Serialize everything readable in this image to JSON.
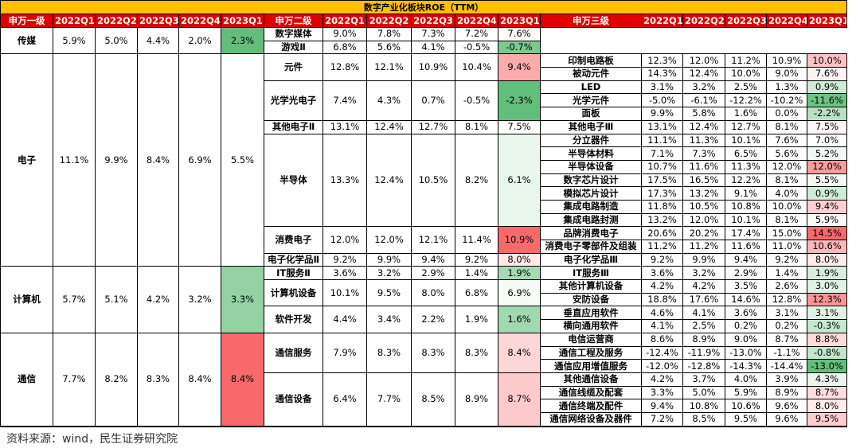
{
  "title": "数字产业化板块ROE（TTM）",
  "header": [
    "申万一级",
    "2022Q1",
    "2022Q2",
    "2022Q3",
    "2022Q4",
    "2023Q1",
    "申万二级",
    "2022Q1",
    "2022Q2",
    "2022Q3",
    "2022Q4",
    "2023Q1",
    "申万三级",
    "2022Q1",
    "2022Q2",
    "2022Q3",
    "2022Q4",
    "2023Q1"
  ],
  "color_scale": {
    "low": "#63be7b",
    "mid": "#ffffff",
    "high": "#f8696b"
  },
  "sectors": [
    {
      "name": "传媒",
      "values": [
        "5.9%",
        "5.0%",
        "4.4%",
        "2.0%",
        "2.3%"
      ],
      "subs": [
        {
          "name": "数字媒体",
          "values": [
            "9.0%",
            "7.8%",
            "7.3%",
            "7.2%",
            "7.6%"
          ],
          "subs": []
        },
        {
          "name": "游戏Ⅱ",
          "values": [
            "6.8%",
            "5.6%",
            "4.1%",
            "-0.5%",
            "-0.7%"
          ],
          "subs": []
        }
      ]
    },
    {
      "name": "电子",
      "values": [
        "11.1%",
        "9.9%",
        "8.4%",
        "6.9%",
        "5.5%"
      ],
      "subs": [
        {
          "name": "元件",
          "values": [
            "12.8%",
            "12.1%",
            "10.9%",
            "10.4%",
            "9.4%"
          ],
          "subs": [
            {
              "name": "印制电路板",
              "values": [
                "12.3%",
                "12.0%",
                "11.2%",
                "10.9%",
                "10.0%"
              ]
            },
            {
              "name": "被动元件",
              "values": [
                "14.3%",
                "12.4%",
                "10.0%",
                "9.0%",
                "7.6%"
              ]
            }
          ]
        },
        {
          "name": "光学光电子",
          "values": [
            "7.4%",
            "4.3%",
            "0.7%",
            "-0.5%",
            "-2.3%"
          ],
          "subs": [
            {
              "name": "LED",
              "values": [
                "3.1%",
                "3.2%",
                "2.5%",
                "1.3%",
                "0.9%"
              ]
            },
            {
              "name": "光学元件",
              "values": [
                "-5.0%",
                "-6.1%",
                "-12.2%",
                "-10.2%",
                "-11.6%"
              ]
            },
            {
              "name": "面板",
              "values": [
                "9.9%",
                "5.8%",
                "1.6%",
                "0.0%",
                "-2.2%"
              ]
            }
          ]
        },
        {
          "name": "其他电子Ⅱ",
          "values": [
            "13.1%",
            "12.4%",
            "12.7%",
            "8.1%",
            "7.5%"
          ],
          "subs": [
            {
              "name": "其他电子Ⅲ",
              "values": [
                "13.1%",
                "12.4%",
                "12.7%",
                "8.1%",
                "7.5%"
              ]
            }
          ]
        },
        {
          "name": "半导体",
          "values": [
            "13.3%",
            "12.4%",
            "10.5%",
            "8.2%",
            "6.1%"
          ],
          "subs": [
            {
              "name": "分立器件",
              "values": [
                "11.1%",
                "11.3%",
                "10.1%",
                "7.6%",
                "7.0%"
              ]
            },
            {
              "name": "半导体材料",
              "values": [
                "7.1%",
                "7.3%",
                "6.5%",
                "5.6%",
                "5.2%"
              ]
            },
            {
              "name": "半导体设备",
              "values": [
                "10.7%",
                "11.6%",
                "11.3%",
                "12.0%",
                "12.0%"
              ]
            },
            {
              "name": "数字芯片设计",
              "values": [
                "17.5%",
                "16.5%",
                "12.2%",
                "8.1%",
                "5.5%"
              ]
            },
            {
              "name": "模拟芯片设计",
              "values": [
                "17.3%",
                "13.2%",
                "9.1%",
                "4.0%",
                "0.9%"
              ]
            },
            {
              "name": "集成电路制造",
              "values": [
                "11.8%",
                "10.5%",
                "10.8%",
                "10.0%",
                "9.4%"
              ]
            },
            {
              "name": "集成电路封测",
              "values": [
                "13.2%",
                "12.0%",
                "10.1%",
                "8.1%",
                "5.9%"
              ]
            }
          ]
        },
        {
          "name": "消费电子",
          "values": [
            "12.0%",
            "12.0%",
            "12.1%",
            "11.4%",
            "10.9%"
          ],
          "subs": [
            {
              "name": "品牌消费电子",
              "values": [
                "20.6%",
                "20.2%",
                "17.4%",
                "15.0%",
                "14.5%"
              ]
            },
            {
              "name": "消费电子零部件及组装",
              "values": [
                "11.2%",
                "11.2%",
                "11.6%",
                "11.0%",
                "10.6%"
              ]
            }
          ]
        },
        {
          "name": "电子化学品Ⅱ",
          "values": [
            "9.2%",
            "9.9%",
            "9.4%",
            "9.2%",
            "8.0%"
          ],
          "subs": [
            {
              "name": "电子化学品Ⅲ",
              "values": [
                "9.2%",
                "9.9%",
                "9.4%",
                "9.2%",
                "8.0%"
              ]
            }
          ]
        }
      ]
    },
    {
      "name": "计算机",
      "values": [
        "5.7%",
        "5.1%",
        "4.2%",
        "3.2%",
        "3.3%"
      ],
      "subs": [
        {
          "name": "IT服务Ⅱ",
          "values": [
            "3.6%",
            "3.2%",
            "2.9%",
            "1.4%",
            "1.9%"
          ],
          "subs": [
            {
              "name": "IT服务Ⅲ",
              "values": [
                "3.6%",
                "3.2%",
                "2.9%",
                "1.4%",
                "1.9%"
              ]
            }
          ]
        },
        {
          "name": "计算机设备",
          "values": [
            "10.1%",
            "9.5%",
            "8.0%",
            "6.8%",
            "6.9%"
          ],
          "subs": [
            {
              "name": "其他计算机设备",
              "values": [
                "4.2%",
                "4.2%",
                "3.5%",
                "2.6%",
                "3.0%"
              ]
            },
            {
              "name": "安防设备",
              "values": [
                "18.8%",
                "17.6%",
                "14.6%",
                "12.8%",
                "12.3%"
              ]
            }
          ]
        },
        {
          "name": "软件开发",
          "values": [
            "4.4%",
            "3.4%",
            "2.2%",
            "1.9%",
            "1.6%"
          ],
          "subs": [
            {
              "name": "垂直应用软件",
              "values": [
                "4.6%",
                "4.1%",
                "3.6%",
                "3.1%",
                "3.1%"
              ]
            },
            {
              "name": "横向通用软件",
              "values": [
                "4.1%",
                "2.5%",
                "0.2%",
                "0.2%",
                "-0.3%"
              ]
            }
          ]
        }
      ]
    },
    {
      "name": "通信",
      "values": [
        "7.7%",
        "8.2%",
        "8.3%",
        "8.4%",
        "8.4%"
      ],
      "subs": [
        {
          "name": "通信服务",
          "values": [
            "7.9%",
            "8.3%",
            "8.3%",
            "8.3%",
            "8.4%"
          ],
          "subs": [
            {
              "name": "电信运营商",
              "values": [
                "8.6%",
                "8.9%",
                "9.0%",
                "8.7%",
                "8.8%"
              ]
            },
            {
              "name": "通信工程及服务",
              "values": [
                "-12.4%",
                "-11.9%",
                "-13.0%",
                "-1.1%",
                "-0.8%"
              ]
            },
            {
              "name": "通信应用增值服务",
              "values": [
                "-12.0%",
                "-12.8%",
                "-14.3%",
                "-14.4%",
                "-13.0%"
              ]
            }
          ]
        },
        {
          "name": "通信设备",
          "values": [
            "6.4%",
            "7.7%",
            "8.5%",
            "8.9%",
            "8.7%"
          ],
          "subs": [
            {
              "name": "其他通信设备",
              "values": [
                "4.2%",
                "3.7%",
                "4.0%",
                "3.9%",
                "4.3%"
              ]
            },
            {
              "name": "通信线缆及配套",
              "values": [
                "3.3%",
                "5.0%",
                "5.9%",
                "8.9%",
                "8.7%"
              ]
            },
            {
              "name": "通信终端及配件",
              "values": [
                "9.4%",
                "10.8%",
                "10.6%",
                "9.6%",
                "8.0%"
              ]
            },
            {
              "name": "通信网络设备及器件",
              "values": [
                "7.2%",
                "8.5%",
                "9.5%",
                "9.6%",
                "9.5%"
              ]
            }
          ]
        }
      ]
    }
  ],
  "source": "资料来源：wind，民生证券研究院"
}
